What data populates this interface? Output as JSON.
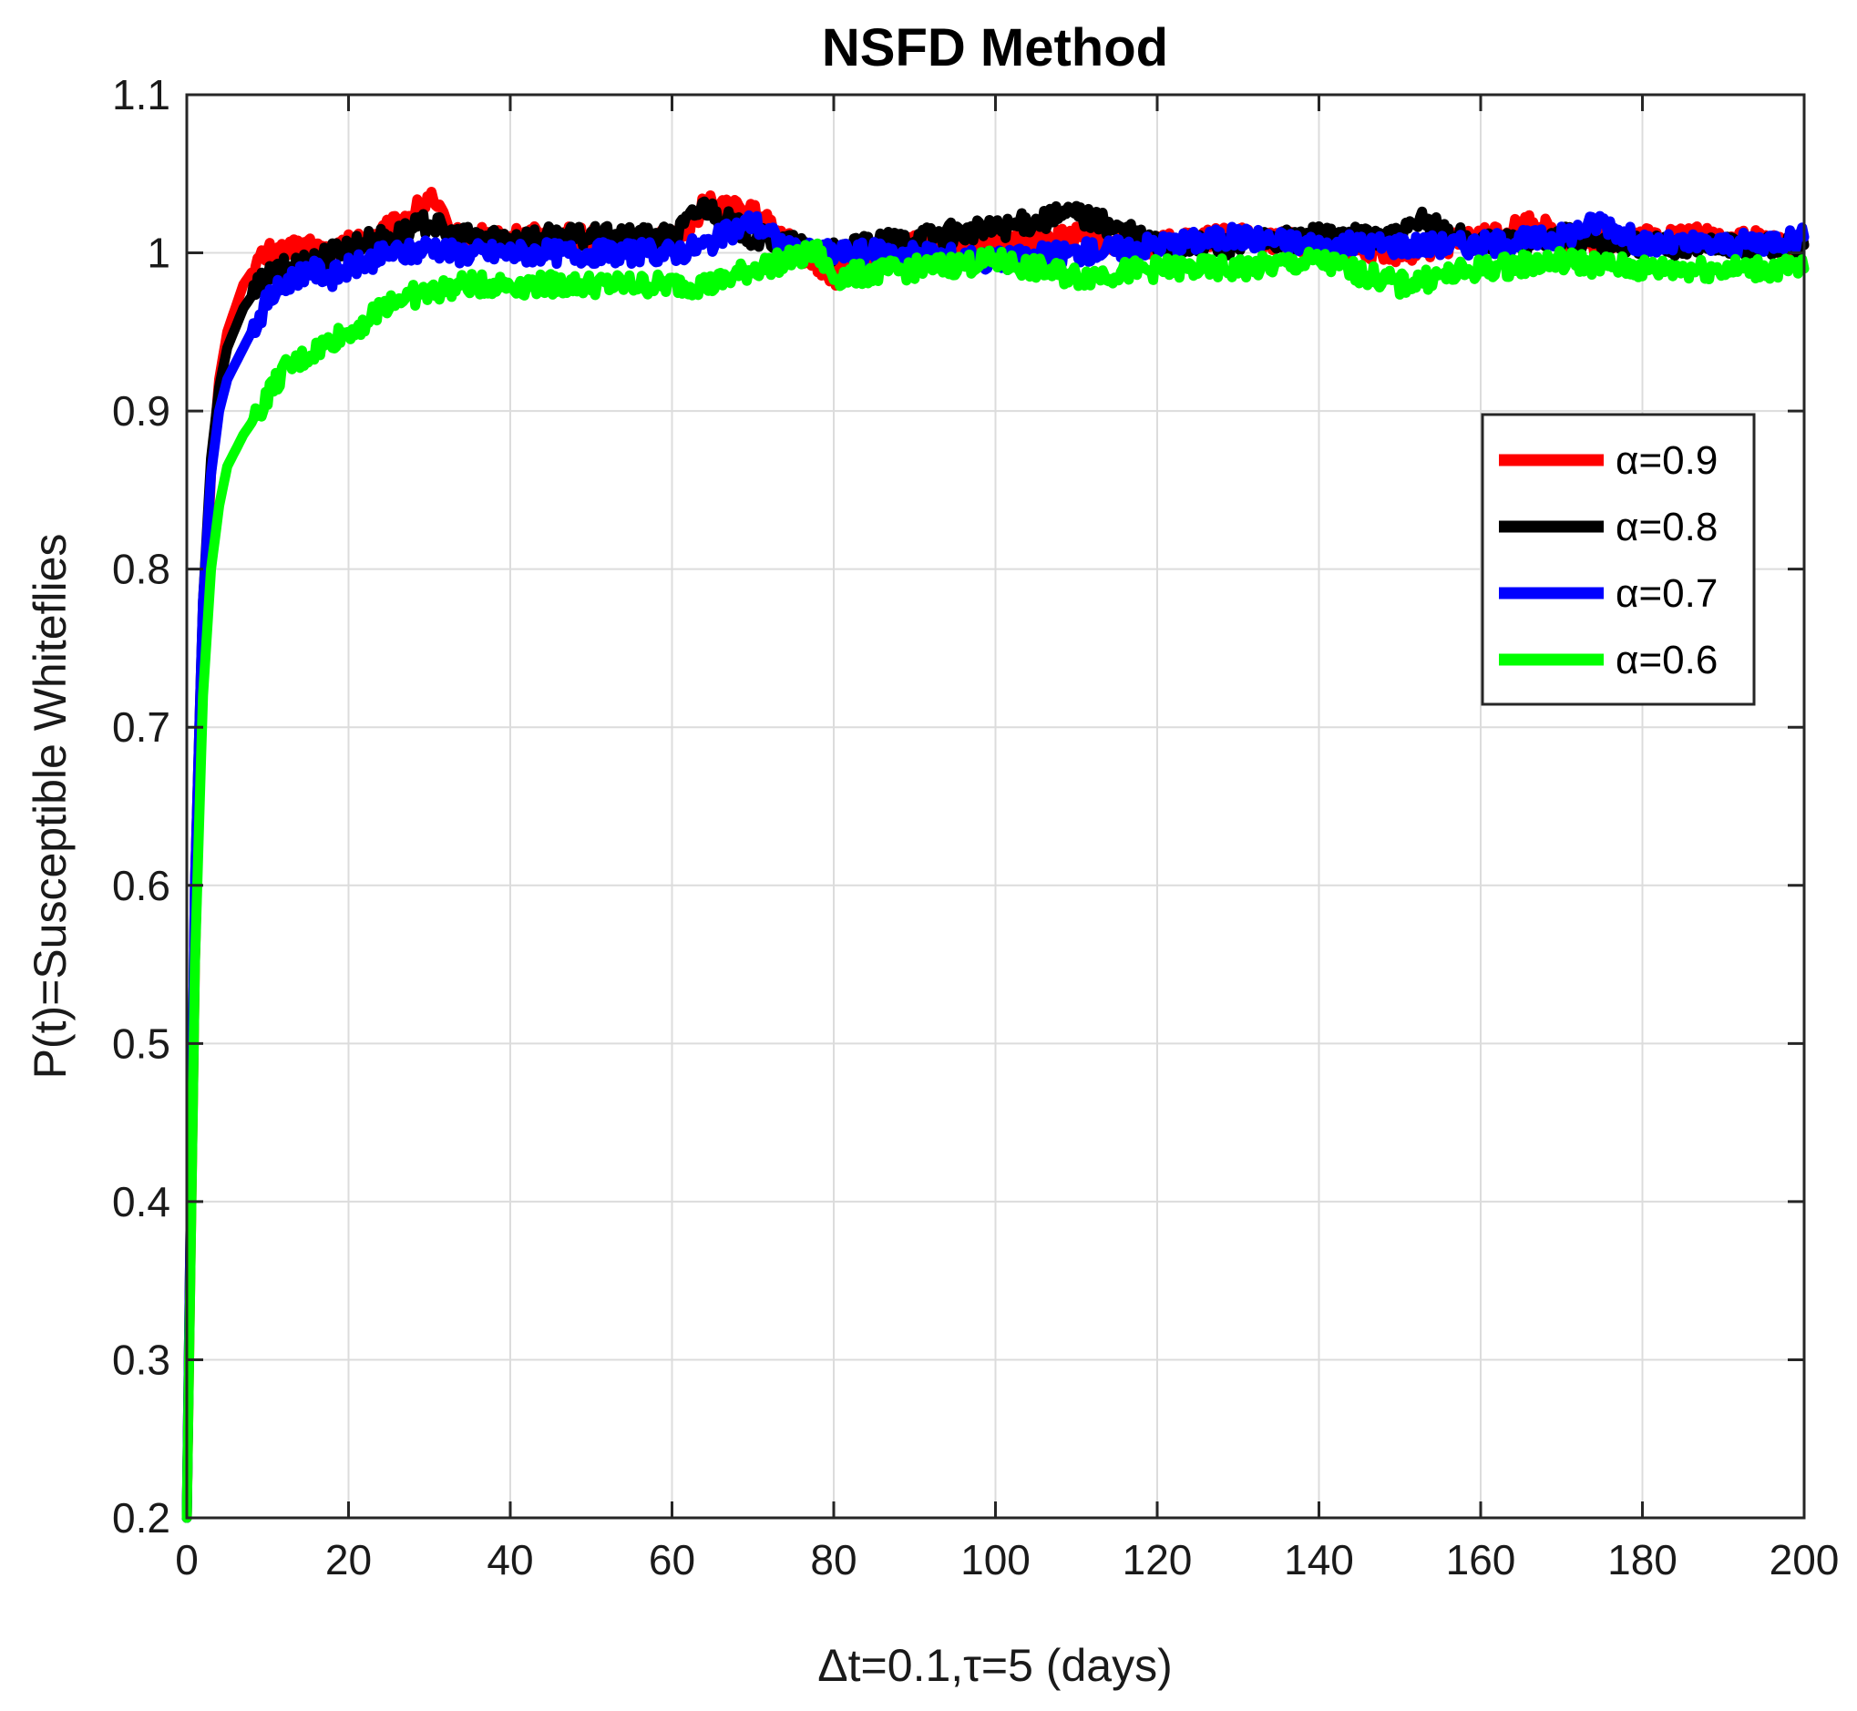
{
  "chart_data": {
    "type": "line",
    "title": "NSFD Method",
    "xlabel": "Δt=0.1,τ=5 (days)",
    "ylabel": "P(t)=Susceptible Whiteflies",
    "xlim": [
      0,
      200
    ],
    "ylim": [
      0.2,
      1.1
    ],
    "xticks": [
      "0",
      "20",
      "40",
      "60",
      "80",
      "100",
      "120",
      "140",
      "160",
      "180",
      "200"
    ],
    "yticks": [
      "0.2",
      "0.3",
      "0.4",
      "0.5",
      "0.6",
      "0.7",
      "0.8",
      "0.9",
      "1",
      "1.1"
    ],
    "grid": true,
    "legend_position": "right",
    "series": [
      {
        "name": "α=0.9",
        "color": "#ff0000",
        "x": [
          0,
          1,
          2,
          3,
          4,
          5,
          7,
          9,
          10,
          12,
          15,
          18,
          20,
          25,
          28,
          30,
          33,
          40,
          50,
          60,
          64,
          70,
          75,
          80,
          90,
          100,
          110,
          120,
          130,
          140,
          150,
          160,
          167,
          170,
          180,
          190,
          200
        ],
        "y": [
          0.2,
          0.55,
          0.75,
          0.86,
          0.92,
          0.95,
          0.98,
          0.995,
          1.0,
          1.0,
          1.005,
          1.0,
          1.005,
          1.015,
          1.025,
          1.035,
          1.01,
          1.01,
          1.01,
          1.008,
          1.03,
          1.025,
          1.005,
          0.985,
          1.005,
          1.005,
          1.01,
          1.005,
          1.01,
          1.005,
          1.0,
          1.01,
          1.02,
          1.005,
          1.01,
          1.01,
          1.005
        ]
      },
      {
        "name": "α=0.8",
        "color": "#000000",
        "x": [
          0,
          1,
          2,
          3,
          4,
          5,
          7,
          9,
          10,
          12,
          15,
          18,
          20,
          25,
          28,
          30,
          33,
          40,
          50,
          60,
          64,
          70,
          75,
          80,
          90,
          100,
          110,
          120,
          130,
          140,
          150,
          153,
          160,
          170,
          180,
          190,
          200
        ],
        "y": [
          0.2,
          0.6,
          0.78,
          0.87,
          0.915,
          0.94,
          0.965,
          0.98,
          0.985,
          0.99,
          0.995,
          1.0,
          1.005,
          1.01,
          1.015,
          1.02,
          1.01,
          1.01,
          1.01,
          1.01,
          1.03,
          1.01,
          1.005,
          1.0,
          1.01,
          1.015,
          1.025,
          1.005,
          1.005,
          1.01,
          1.01,
          1.02,
          1.005,
          1.01,
          1.005,
          1.005,
          1.005
        ]
      },
      {
        "name": "α=0.7",
        "color": "#0000ff",
        "x": [
          0,
          1,
          2,
          3,
          4,
          5,
          7,
          9,
          10,
          12,
          15,
          18,
          20,
          25,
          28,
          30,
          33,
          40,
          50,
          60,
          64,
          70,
          75,
          80,
          90,
          100,
          110,
          120,
          130,
          140,
          150,
          160,
          170,
          175,
          180,
          190,
          200
        ],
        "y": [
          0.2,
          0.6,
          0.78,
          0.86,
          0.9,
          0.92,
          0.94,
          0.96,
          0.97,
          0.98,
          0.99,
          0.985,
          0.99,
          1.0,
          1.0,
          1.005,
          1.0,
          1.0,
          1.0,
          1.0,
          1.005,
          1.02,
          1.0,
          1.0,
          1.0,
          0.995,
          1.0,
          1.005,
          1.01,
          1.005,
          1.005,
          1.005,
          1.01,
          1.02,
          1.005,
          1.005,
          1.01
        ]
      },
      {
        "name": "α=0.6",
        "color": "#00ff00",
        "x": [
          0,
          1,
          2,
          3,
          4,
          5,
          7,
          9,
          10,
          12,
          15,
          18,
          20,
          23,
          25,
          30,
          35,
          40,
          50,
          60,
          65,
          70,
          78,
          80,
          90,
          100,
          110,
          120,
          130,
          140,
          150,
          160,
          170,
          180,
          190,
          200
        ],
        "y": [
          0.2,
          0.55,
          0.72,
          0.8,
          0.84,
          0.865,
          0.885,
          0.9,
          0.91,
          0.925,
          0.935,
          0.945,
          0.95,
          0.96,
          0.97,
          0.975,
          0.98,
          0.98,
          0.98,
          0.98,
          0.98,
          0.99,
          1.0,
          0.985,
          0.99,
          0.995,
          0.985,
          0.99,
          0.99,
          0.995,
          0.98,
          0.99,
          0.995,
          0.99,
          0.99,
          0.99
        ]
      }
    ]
  }
}
